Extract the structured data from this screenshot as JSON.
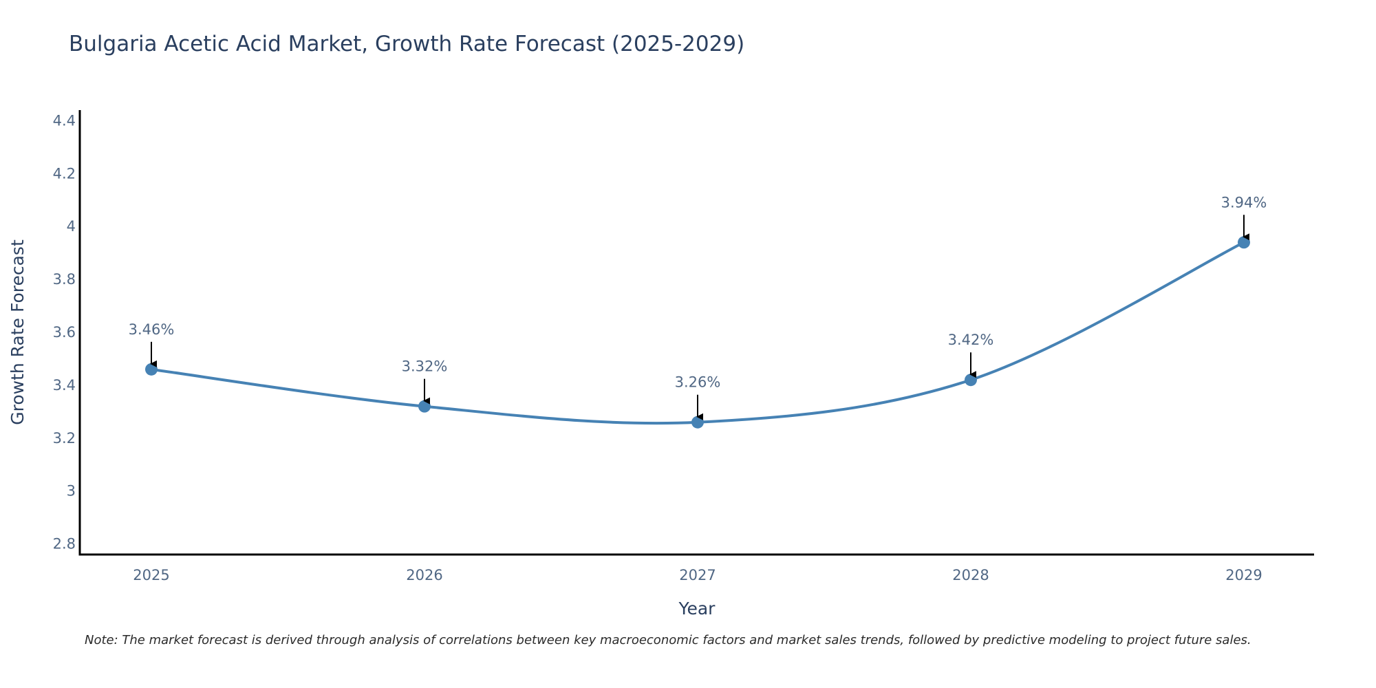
{
  "chart_data": {
    "type": "line",
    "title": "Bulgaria Acetic Acid Market, Growth Rate Forecast (2025-2029)",
    "xlabel": "Year",
    "ylabel": "Growth Rate Forecast",
    "categories": [
      "2025",
      "2026",
      "2027",
      "2028",
      "2029"
    ],
    "values": [
      3.46,
      3.32,
      3.26,
      3.42,
      3.94
    ],
    "data_labels": [
      "3.46%",
      "3.32%",
      "3.26%",
      "3.42%",
      "3.94%"
    ],
    "ylim": [
      2.76,
      4.44
    ],
    "yticks": [
      2.8,
      3,
      3.2,
      3.4,
      3.6,
      3.8,
      4,
      4.2,
      4.4
    ],
    "ytick_labels": [
      "2.8",
      "3",
      "3.2",
      "3.4",
      "3.6",
      "3.8",
      "4",
      "4.2",
      "4.4"
    ],
    "line_color": "#4682b4",
    "grid": false,
    "note": "Note: The market forecast is derived through analysis of correlations between key macroeconomic factors and market sales trends, followed by predictive modeling to project future sales."
  }
}
